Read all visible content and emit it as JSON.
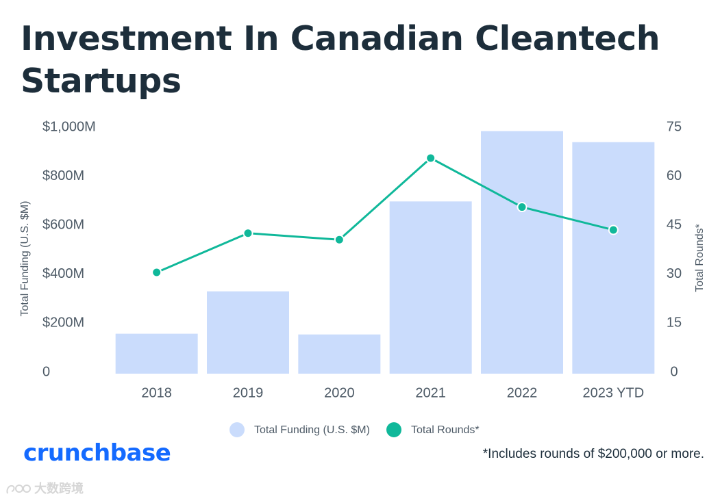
{
  "title": "Investment In Canadian Cleantech Startups",
  "brand": "crunchbase",
  "footnote": "*Includes rounds of $200,000 or more.",
  "watermark": "大数跨境",
  "colors": {
    "bar": "#cadcfc",
    "line": "#10b89a",
    "title": "#1d2e3b",
    "brand": "#146aff"
  },
  "chart_data": {
    "type": "bar",
    "title": "Investment In Canadian Cleantech Startups",
    "categories": [
      "2018",
      "2019",
      "2020",
      "2021",
      "2022",
      "2023 YTD"
    ],
    "series": [
      {
        "name": "Total Funding (U.S. $M)",
        "type": "bar",
        "axis": "left",
        "values": [
          163,
          336,
          160,
          703,
          990,
          945
        ]
      },
      {
        "name": "Total Rounds*",
        "type": "line",
        "axis": "right",
        "values": [
          31,
          43,
          41,
          66,
          51,
          44
        ]
      }
    ],
    "ylabel": "Total Funding (U.S. $M)",
    "y2label": "Total Rounds*",
    "ylim": [
      0,
      1000
    ],
    "y2lim": [
      0,
      75
    ],
    "yticks": [
      "0",
      "$200M",
      "$400M",
      "$600M",
      "$800M",
      "$1,000M"
    ],
    "y2ticks": [
      "0",
      "15",
      "30",
      "45",
      "60",
      "75"
    ],
    "legend": [
      {
        "label": "Total Funding (U.S. $M)"
      },
      {
        "label": "Total Rounds*"
      }
    ],
    "legend_position": "bottom-center",
    "grid": false
  }
}
